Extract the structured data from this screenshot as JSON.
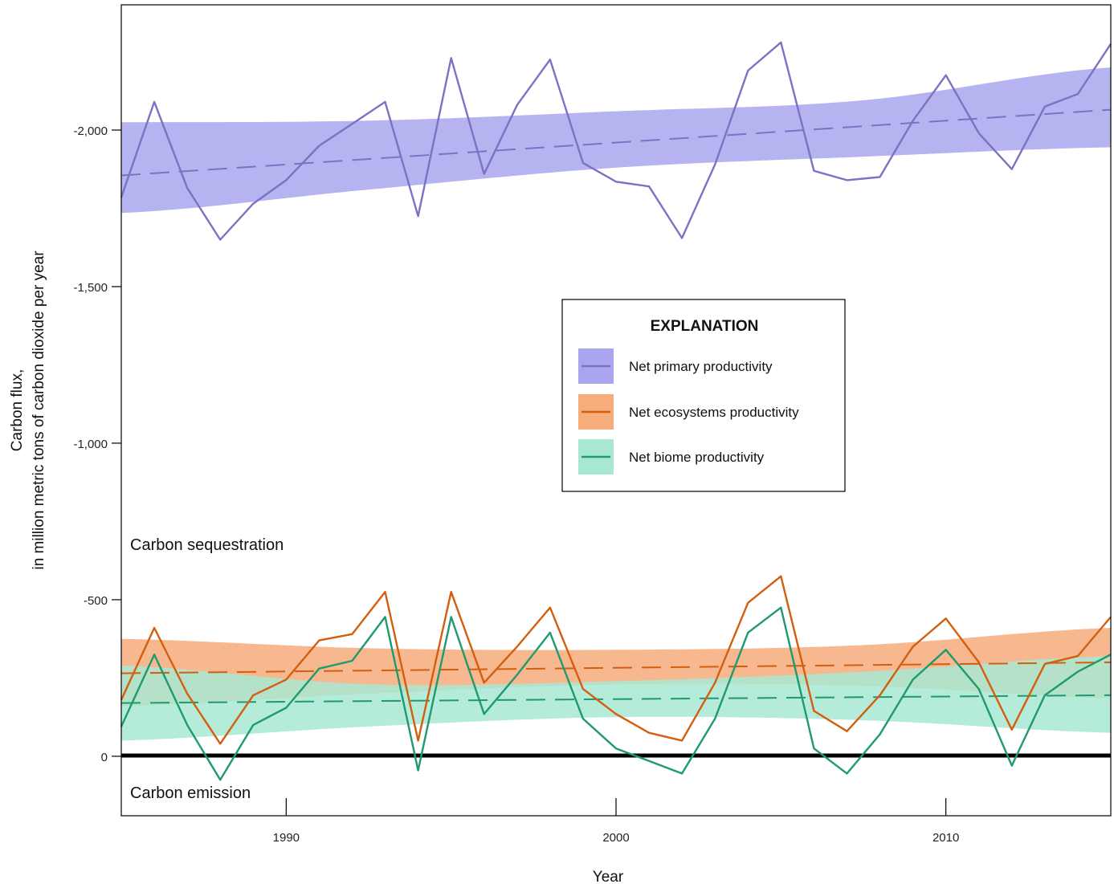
{
  "chart_data": {
    "type": "line",
    "xlabel": "Year",
    "ylabel_lines": [
      "Carbon flux,",
      "in million metric tons of carbon dioxide per year"
    ],
    "xlim": [
      1985,
      2015
    ],
    "ylim": [
      190,
      -2400
    ],
    "y_inverted": true,
    "x_ticks": [
      1990,
      2000,
      2010
    ],
    "x_tick_labels": [
      "1990",
      "2000",
      "2010"
    ],
    "y_ticks": [
      -2000,
      -1500,
      -1000,
      -500,
      0
    ],
    "y_tick_labels": [
      "-2,000",
      "-1,500",
      "-1,000",
      "-500",
      "0"
    ],
    "zero_line": 0,
    "annotations": {
      "above_zero": "Carbon sequestration",
      "below_zero": "Carbon emission"
    },
    "legend": {
      "title": "EXPLANATION",
      "position": "center-right"
    },
    "x": [
      1985,
      1986,
      1987,
      1988,
      1989,
      1990,
      1991,
      1992,
      1993,
      1994,
      1995,
      1996,
      1997,
      1998,
      1999,
      2000,
      2001,
      2002,
      2003,
      2004,
      2005,
      2006,
      2007,
      2008,
      2009,
      2010,
      2011,
      2012,
      2013,
      2014,
      2015
    ],
    "series": [
      {
        "name": "Net primary productivity",
        "color": "#7b72c4",
        "band_color": "#a9a6ef",
        "values": [
          -1785,
          -2090,
          -1815,
          -1650,
          -1765,
          -1840,
          -1950,
          -2020,
          -2090,
          -1725,
          -2230,
          -1860,
          -2080,
          -2225,
          -1895,
          -1835,
          -1820,
          -1655,
          -1890,
          -2190,
          -2280,
          -1870,
          -1840,
          -1850,
          -2030,
          -2175,
          -1990,
          -1875,
          -2075,
          -2115,
          -2275
        ],
        "trend": [
          -1855,
          -2065
        ],
        "band_upper": [
          -2025,
          -2030,
          -2060,
          -2095,
          -2200
        ],
        "band_lower": [
          -1735,
          -1810,
          -1880,
          -1915,
          -1945
        ]
      },
      {
        "name": "Net ecosystems productivity",
        "color": "#d35f0e",
        "band_color": "#f7ac7b",
        "values": [
          -180,
          -410,
          -200,
          -40,
          -195,
          -245,
          -370,
          -390,
          -525,
          -50,
          -525,
          -235,
          -350,
          -475,
          -215,
          -135,
          -75,
          -50,
          -235,
          -490,
          -575,
          -145,
          -80,
          -195,
          -350,
          -440,
          -300,
          -85,
          -295,
          -320,
          -445
        ],
        "trend": [
          -265,
          -300
        ],
        "band_upper": [
          -375,
          -345,
          -340,
          -355,
          -410
        ],
        "band_lower": [
          -160,
          -200,
          -230,
          -225,
          -185
        ]
      },
      {
        "name": "Net biome productivity",
        "color": "#1f9a6e",
        "band_color": "#a8e8d2",
        "values": [
          -95,
          -325,
          -100,
          75,
          -100,
          -155,
          -280,
          -305,
          -445,
          45,
          -445,
          -135,
          -260,
          -395,
          -120,
          -25,
          15,
          55,
          -120,
          -395,
          -475,
          -25,
          55,
          -70,
          -245,
          -340,
          -215,
          30,
          -195,
          -270,
          -325
        ],
        "trend": [
          -170,
          -195
        ],
        "band_upper": [
          -290,
          -230,
          -240,
          -270,
          -320
        ],
        "band_lower": [
          -50,
          -95,
          -125,
          -115,
          -75
        ]
      }
    ],
    "band_x": [
      1985,
      1992.5,
      2000,
      2007.5,
      2015
    ]
  }
}
